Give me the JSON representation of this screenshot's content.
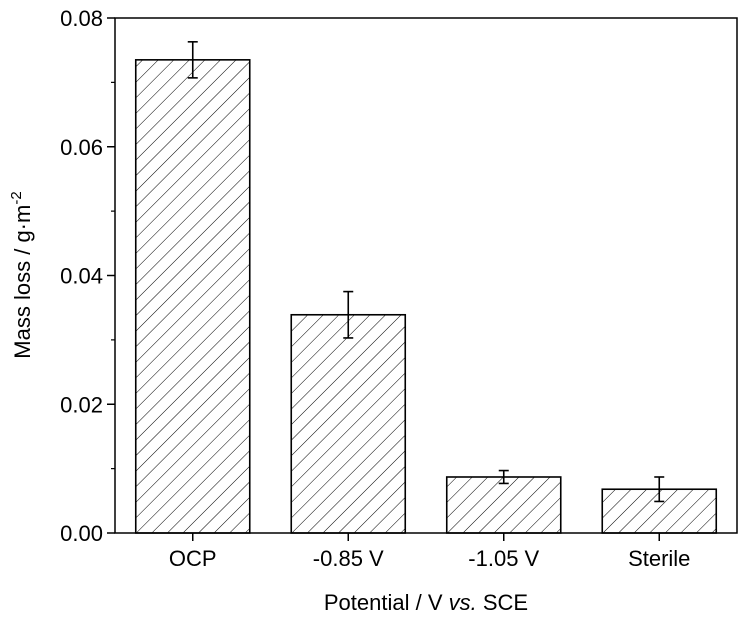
{
  "chart_data": {
    "type": "bar",
    "title": "",
    "categories": [
      "OCP",
      "-0.85 V",
      "-1.05 V",
      "Sterile"
    ],
    "values": [
      0.0735,
      0.0339,
      0.0087,
      0.0068
    ],
    "errors": [
      0.0028,
      0.0036,
      0.001,
      0.0019
    ],
    "ylim": [
      0,
      0.08
    ],
    "yticks": [
      0.0,
      0.02,
      0.04,
      0.06,
      0.08
    ],
    "ytick_labels": [
      "0.00",
      "0.02",
      "0.04",
      "0.06",
      "0.08"
    ],
    "ylabel": {
      "main": "Mass loss / g·m",
      "sup": "-2"
    },
    "xlabel": {
      "pre": "Potential / V ",
      "italic": "vs.",
      "post": " SCE"
    },
    "bar_fill": "hatched",
    "grid": false
  }
}
